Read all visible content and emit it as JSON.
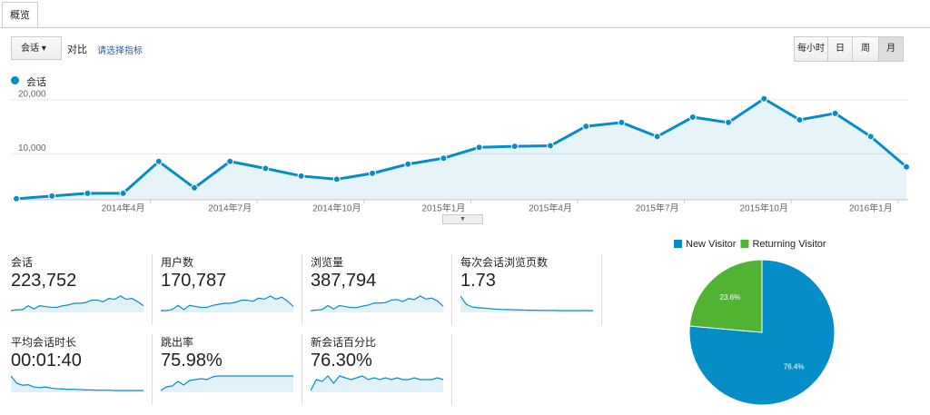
{
  "tab": "概览",
  "controls": {
    "metric": "会话",
    "compare": "对比",
    "select_metric": "请选择指标",
    "granularity": [
      "每小时",
      "日",
      "周",
      "月"
    ],
    "selected": "月"
  },
  "chart_data": [
    {
      "type": "line",
      "series": [
        {
          "name": "会话",
          "color": "#058dc7",
          "values": [
            1700,
            2200,
            2700,
            2700,
            8600,
            3700,
            8600,
            7300,
            5900,
            5300,
            6400,
            8100,
            9200,
            11200,
            11400,
            11500,
            15100,
            15800,
            13200,
            16800,
            15800,
            20200,
            16300,
            17500,
            13200,
            7600
          ]
        }
      ],
      "categories": [
        null,
        null,
        null,
        "2014年4月",
        null,
        null,
        "2014年7月",
        null,
        null,
        "2014年10月",
        null,
        null,
        "2015年1月",
        null,
        null,
        "2015年4月",
        null,
        null,
        "2015年7月",
        null,
        null,
        "2015年10月",
        null,
        null,
        "2016年1月",
        null
      ],
      "ylim": [
        1500,
        21000
      ],
      "yticks": [
        {
          "value": 10000,
          "label": "10,000"
        },
        {
          "value": 20000,
          "label": "20,000"
        }
      ],
      "grid": true
    },
    {
      "type": "pie",
      "categories": [
        "New Visitor",
        "Returning Visitor"
      ],
      "values": [
        76.4,
        23.6
      ],
      "value_labels": [
        "76.4%",
        "23.6%"
      ],
      "colors": [
        "#058dc7",
        "#50b432"
      ]
    }
  ],
  "metrics": [
    {
      "label": "会话",
      "value": "223,752",
      "sparkline": [
        2,
        3,
        3,
        8,
        4,
        8,
        7,
        6,
        6,
        8,
        9,
        11,
        11,
        12,
        15,
        15,
        13,
        17,
        16,
        20,
        16,
        17,
        13,
        8
      ]
    },
    {
      "label": "用户数",
      "value": "170,787",
      "sparkline": [
        2,
        2,
        3,
        7,
        3,
        7,
        6,
        5,
        5,
        7,
        8,
        9,
        9,
        10,
        12,
        12,
        11,
        14,
        13,
        16,
        13,
        15,
        11,
        6
      ]
    },
    {
      "label": "浏览量",
      "value": "387,794",
      "sparkline": [
        3,
        4,
        5,
        13,
        6,
        13,
        11,
        9,
        9,
        12,
        14,
        18,
        18,
        19,
        24,
        25,
        21,
        27,
        25,
        32,
        26,
        28,
        22,
        12
      ]
    },
    {
      "label": "每次会话浏览页数",
      "value": "1.73",
      "sparkline": [
        2.6,
        2.1,
        1.95,
        1.9,
        1.88,
        1.85,
        1.82,
        1.8,
        1.79,
        1.78,
        1.77,
        1.76,
        1.75,
        1.75,
        1.74,
        1.74,
        1.74,
        1.73,
        1.73,
        1.73,
        1.73,
        1.73,
        1.73,
        1.73
      ]
    },
    {
      "label": "平均会话时长",
      "value": "00:01:40",
      "sparkline": [
        150,
        125,
        118,
        120,
        112,
        110,
        112,
        108,
        106,
        105,
        104,
        104,
        103,
        102,
        102,
        101,
        101,
        101,
        100,
        100,
        100,
        100,
        100,
        100
      ]
    },
    {
      "label": "跳出率",
      "value": "75.98%",
      "sparkline": [
        60,
        64,
        65,
        70,
        66,
        71,
        72,
        73,
        72,
        75,
        76,
        76,
        76,
        76,
        76,
        76,
        76,
        76,
        76,
        76,
        76,
        76,
        76,
        76
      ]
    },
    {
      "label": "新会话百分比",
      "value": "76.30%",
      "sparkline": [
        70,
        76,
        75,
        78,
        74,
        78,
        77,
        76,
        77,
        78,
        76,
        77,
        76,
        77,
        76,
        77,
        76,
        76,
        77,
        76,
        76,
        76,
        77,
        76
      ]
    }
  ]
}
